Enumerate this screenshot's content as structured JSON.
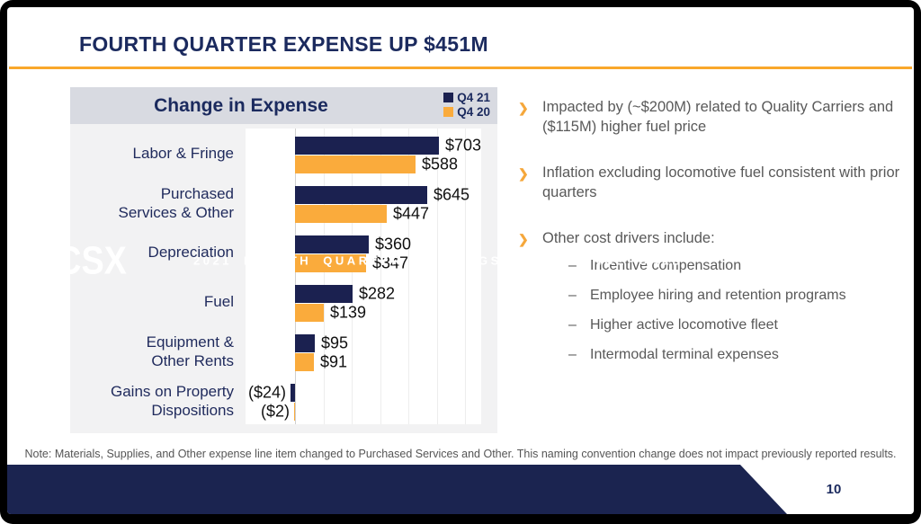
{
  "slide": {
    "title": "FOURTH QUARTER EXPENSE UP $451M",
    "note": "Note: Materials, Supplies, and Other expense line item changed to Purchased Services and Other. This naming convention change does not impact previously reported results.",
    "accent_color": "#F9A72B",
    "navy_color": "#1B2150"
  },
  "chart_data": {
    "type": "bar",
    "orientation": "horizontal",
    "title": "Change in Expense",
    "categories": [
      "Labor & Fringe",
      "Purchased\nServices & Other",
      "Depreciation",
      "Fuel",
      "Equipment &\nOther Rents",
      "Gains on Property\nDispositions"
    ],
    "series": [
      {
        "name": "Q4 21",
        "color": "#1B2150",
        "values": [
          703,
          645,
          360,
          282,
          95,
          -24
        ],
        "labels": [
          "$703",
          "$645",
          "$360",
          "$282",
          "$95",
          "($24)"
        ]
      },
      {
        "name": "Q4 20",
        "color": "#FAAB3C",
        "values": [
          588,
          447,
          347,
          139,
          91,
          -2
        ],
        "labels": [
          "$588",
          "$447",
          "$347",
          "$139",
          "$91",
          "($2)"
        ]
      }
    ],
    "xlim": [
      -240,
      910
    ],
    "grid": "faint vertical gridlines",
    "legend_position": "top-right"
  },
  "bullets": [
    {
      "text": "Impacted by (~$200M) related to Quality Carriers and ($115M) higher fuel price",
      "sub": []
    },
    {
      "text": "Inflation excluding locomotive fuel consistent with prior quarters",
      "sub": []
    },
    {
      "text": "Other cost drivers include:",
      "sub": [
        "Incentive compensation",
        "Employee hiring and retention programs",
        "Higher active locomotive fleet",
        "Intermodal terminal expenses"
      ]
    }
  ],
  "footer": {
    "logo": "CSX",
    "title": "2021 FOURTH QUARTER EARNINGS CONFERENCE CALL",
    "page": "10"
  }
}
